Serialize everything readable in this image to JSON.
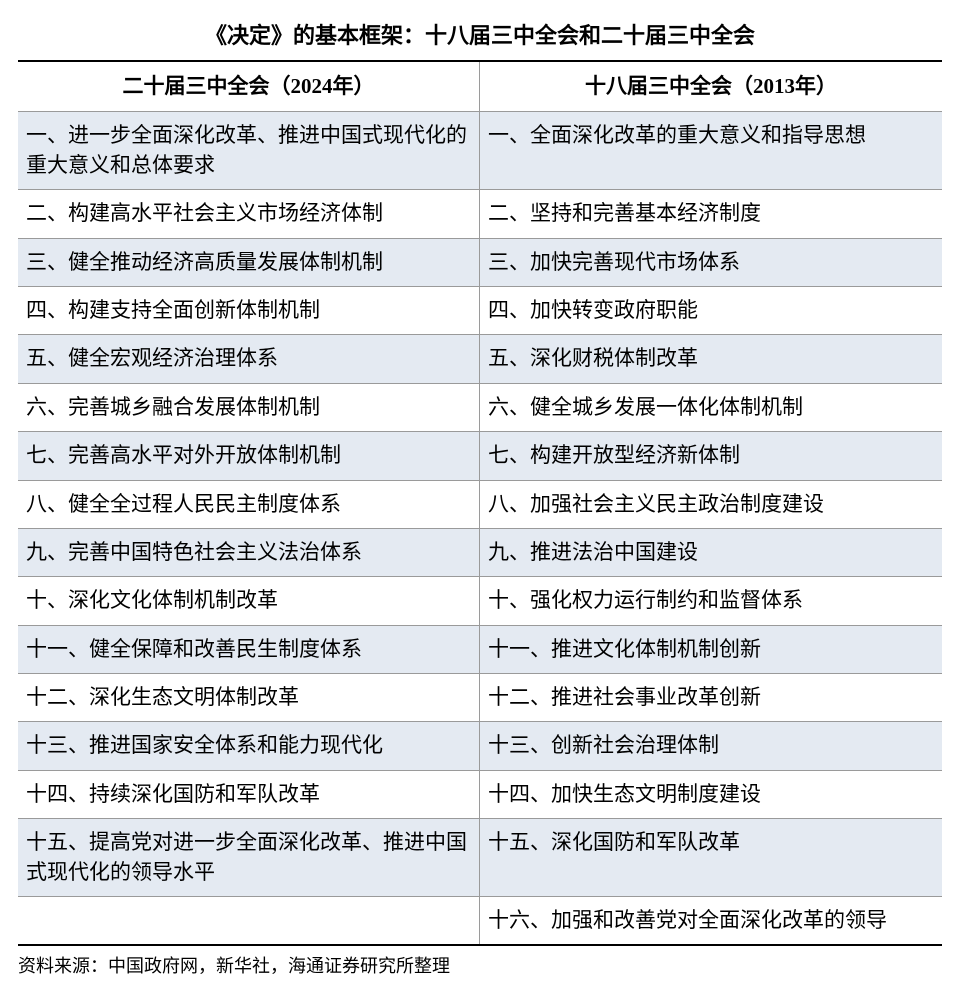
{
  "title": "《决定》的基本框架：十八届三中全会和二十届三中全会",
  "columns": {
    "left": "二十届三中全会（2024年）",
    "right": "十八届三中全会（2013年）"
  },
  "rows": [
    {
      "left": "一、进一步全面深化改革、推进中国式现代化的重大意义和总体要求",
      "right": "一、全面深化改革的重大意义和指导思想"
    },
    {
      "left": "二、构建高水平社会主义市场经济体制",
      "right": "二、坚持和完善基本经济制度"
    },
    {
      "left": "三、健全推动经济高质量发展体制机制",
      "right": "三、加快完善现代市场体系"
    },
    {
      "left": "四、构建支持全面创新体制机制",
      "right": "四、加快转变政府职能"
    },
    {
      "left": "五、健全宏观经济治理体系",
      "right": "五、深化财税体制改革"
    },
    {
      "left": "六、完善城乡融合发展体制机制",
      "right": "六、健全城乡发展一体化体制机制"
    },
    {
      "left": "七、完善高水平对外开放体制机制",
      "right": "七、构建开放型经济新体制"
    },
    {
      "left": "八、健全全过程人民民主制度体系",
      "right": "八、加强社会主义民主政治制度建设"
    },
    {
      "left": "九、完善中国特色社会主义法治体系",
      "right": "九、推进法治中国建设"
    },
    {
      "left": "十、深化文化体制机制改革",
      "right": "十、强化权力运行制约和监督体系"
    },
    {
      "left": "十一、健全保障和改善民生制度体系",
      "right": "十一、推进文化体制机制创新"
    },
    {
      "left": "十二、深化生态文明体制改革",
      "right": "十二、推进社会事业改革创新"
    },
    {
      "left": "十三、推进国家安全体系和能力现代化",
      "right": "十三、创新社会治理体制"
    },
    {
      "left": "十四、持续深化国防和军队改革",
      "right": "十四、加快生态文明制度建设"
    },
    {
      "left": "十五、提高党对进一步全面深化改革、推进中国式现代化的领导水平",
      "right": "十五、深化国防和军队改革"
    },
    {
      "left": "",
      "right": "十六、加强和改善党对全面深化改革的领导"
    }
  ],
  "source": "资料来源：中国政府网，新华社，海通证券研究所整理",
  "style": {
    "odd_bg": "#e4eaf2",
    "even_bg": "#ffffff",
    "border_color": "#9a9a9a",
    "outer_border_color": "#000000",
    "title_fontsize": 22,
    "cell_fontsize": 21,
    "source_fontsize": 18,
    "font_family": "SimSun"
  }
}
